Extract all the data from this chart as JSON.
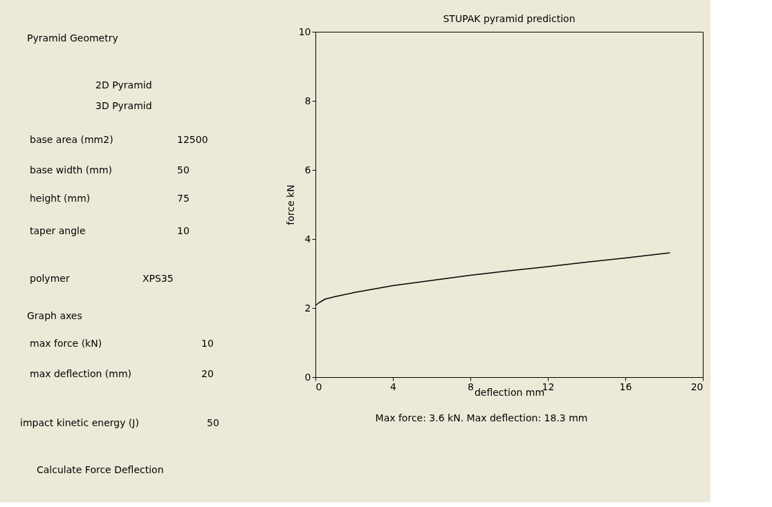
{
  "chart_data": [
    {
      "type": "other",
      "annotations": [
        "Pyramid Geometry",
        "2D Pyramid",
        "3D Pyramid",
        "base area (mm2)",
        "12500",
        "base width (mm)",
        "50",
        "height (mm)",
        "75",
        "taper angle",
        "10",
        "polymer",
        "XPS35",
        "Graph axes",
        "max force (kN)",
        "10",
        "max deflection (mm)",
        "20",
        "impact kinetic energy (J)",
        "50",
        "Calculate Force Deflection"
      ]
    },
    {
      "type": "line",
      "title": "STUPAK pyramid prediction",
      "xlabel": "deflection mm",
      "ylabel": "force kN",
      "x": [
        0,
        0.2,
        0.5,
        1,
        2,
        4,
        6,
        8,
        10,
        12,
        14,
        16,
        18.3
      ],
      "series": [
        {
          "color": "#000000",
          "values": [
            2.08,
            2.16,
            2.26,
            2.33,
            2.45,
            2.65,
            2.8,
            2.95,
            3.08,
            3.2,
            3.33,
            3.45,
            3.6
          ]
        }
      ],
      "xlim": [
        0,
        20
      ],
      "xticks": [
        0,
        4,
        8,
        12,
        16,
        20
      ],
      "ylim": [
        0,
        10
      ],
      "yticks": [
        0,
        2,
        4,
        6,
        8,
        10
      ],
      "grid": false,
      "annotations": [
        "Max force: 3.6 kN.  Max deflection: 18.3 mm"
      ]
    }
  ]
}
